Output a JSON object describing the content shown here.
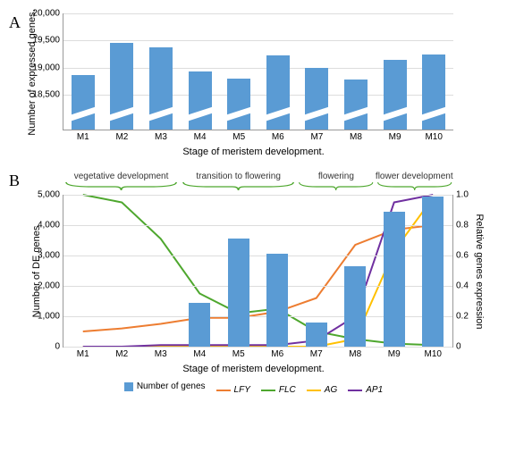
{
  "colors": {
    "bar": "#5a9bd4",
    "lfy": "#ed7d31",
    "flc": "#4ea72e",
    "ag": "#ffc000",
    "ap1": "#7030a0",
    "grid": "#dddddd",
    "axis": "#999999",
    "phase": "#4ea72e",
    "background": "#ffffff"
  },
  "panelA": {
    "label": "A",
    "ylabel": "Number of expressed genes.",
    "xlabel": "Stage of meristem development.",
    "yticks": [
      18500,
      19000,
      19500,
      20000
    ],
    "ymin": 18500,
    "ymax": 20000,
    "categories": [
      "M1",
      "M2",
      "M3",
      "M4",
      "M5",
      "M6",
      "M7",
      "M8",
      "M9",
      "M10"
    ],
    "values": [
      18870,
      19460,
      19370,
      18930,
      18800,
      19230,
      19000,
      18780,
      19140,
      19250
    ]
  },
  "panelB": {
    "label": "B",
    "ylabel": "Number of DE genes",
    "ylabel_right": "Relative genes expression",
    "xlabel": "Stage of meristem development.",
    "yticks_left": [
      0,
      1000,
      2000,
      3000,
      4000,
      5000
    ],
    "yticks_right": [
      0,
      0.2,
      0.4,
      0.6,
      0.8,
      1.0
    ],
    "categories": [
      "M1",
      "M2",
      "M3",
      "M4",
      "M5",
      "M6",
      "M7",
      "M8",
      "M9",
      "M10"
    ],
    "bars": [
      0,
      0,
      0,
      1450,
      3550,
      3050,
      800,
      2650,
      4450,
      4950
    ],
    "lines": {
      "LFY": [
        0.1,
        0.12,
        0.15,
        0.19,
        0.19,
        0.23,
        0.32,
        0.67,
        0.77,
        0.8
      ],
      "FLC": [
        1.0,
        0.95,
        0.71,
        0.35,
        0.22,
        0.25,
        0.1,
        0.05,
        0.02,
        0.01
      ],
      "AG": [
        0.0,
        0.0,
        0.0,
        0.0,
        0.0,
        0.0,
        0.0,
        0.05,
        0.63,
        0.98
      ],
      "AP1": [
        0.0,
        0.0,
        0.01,
        0.01,
        0.01,
        0.01,
        0.04,
        0.2,
        0.95,
        1.0
      ]
    },
    "phases": [
      {
        "label": "vegetative development",
        "start": 0,
        "end": 3
      },
      {
        "label": "transition to flowering",
        "start": 3,
        "end": 6
      },
      {
        "label": "flowering",
        "start": 6,
        "end": 8
      },
      {
        "label": "flower development",
        "start": 8,
        "end": 10
      }
    ],
    "legend": [
      {
        "type": "box",
        "key": "bar",
        "label": "Number of genes",
        "italic": false
      },
      {
        "type": "line",
        "key": "lfy",
        "label": "LFY",
        "italic": true
      },
      {
        "type": "line",
        "key": "flc",
        "label": "FLC",
        "italic": true
      },
      {
        "type": "line",
        "key": "ag",
        "label": "AG",
        "italic": true
      },
      {
        "type": "line",
        "key": "ap1",
        "label": "AP1",
        "italic": true
      }
    ]
  }
}
